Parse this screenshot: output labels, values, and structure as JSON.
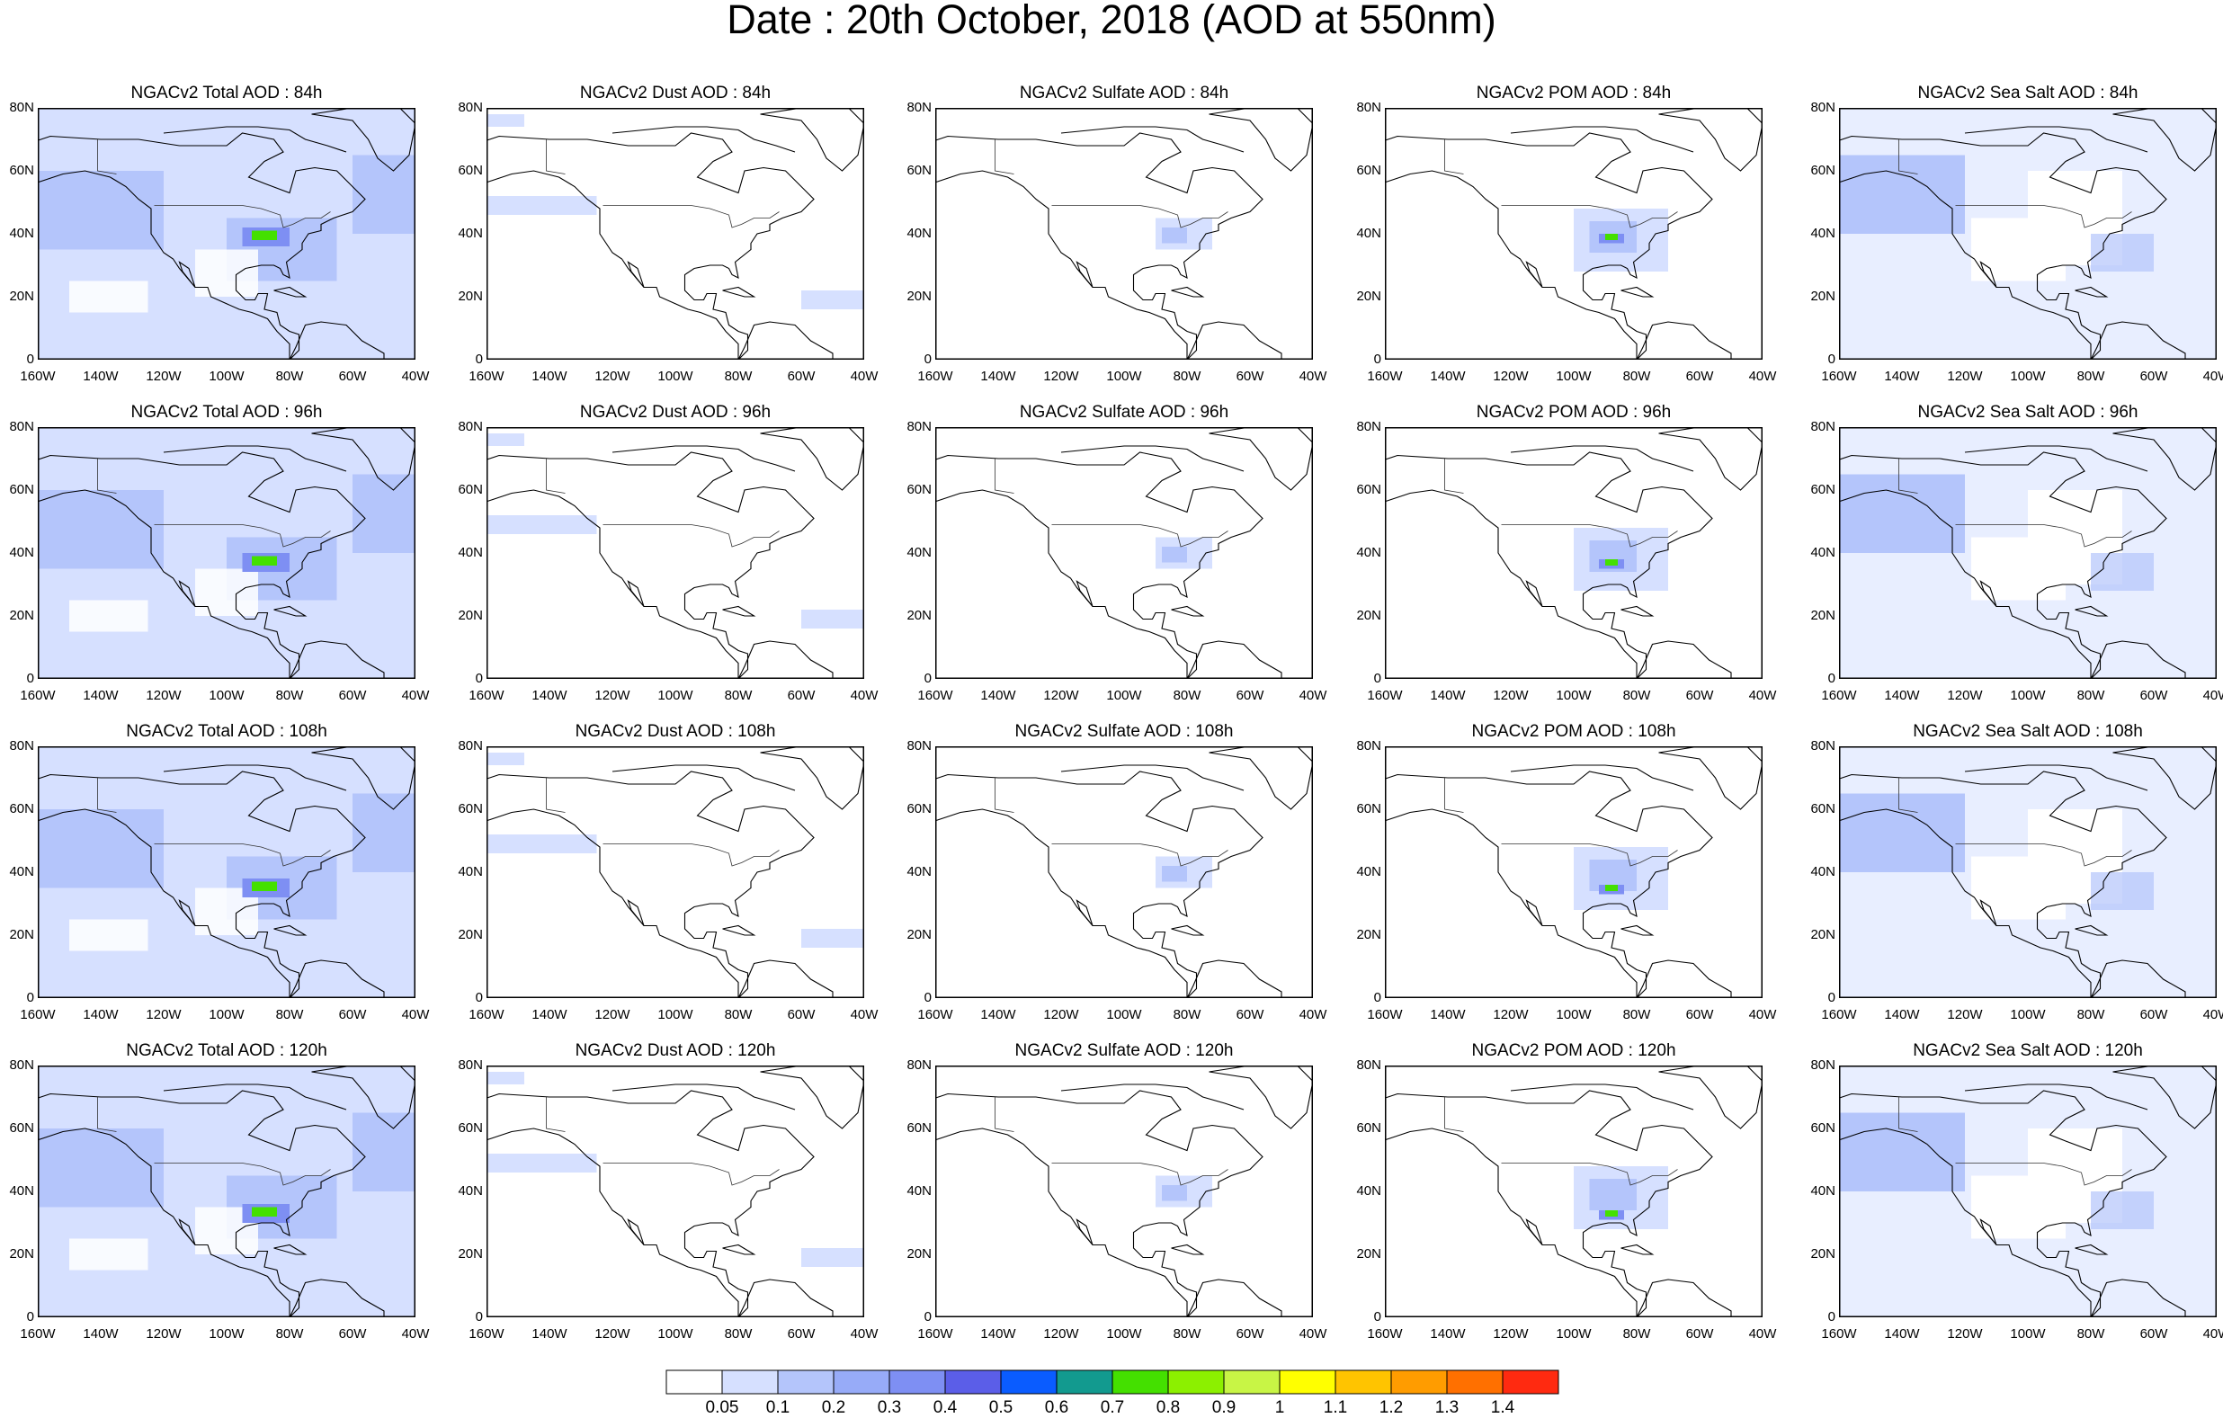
{
  "title": "Date : 20th October, 2018 (AOD at 550nm)",
  "panel_titles": [
    [
      "NGACv2 Total AOD : 84h",
      "NGACv2 Dust AOD : 84h",
      "NGACv2 Sulfate AOD : 84h",
      "NGACv2 POM AOD : 84h",
      "NGACv2 Sea Salt AOD : 84h"
    ],
    [
      "NGACv2 Total AOD : 96h",
      "NGACv2 Dust AOD : 96h",
      "NGACv2 Sulfate AOD : 96h",
      "NGACv2 POM AOD : 96h",
      "NGACv2 Sea Salt AOD : 96h"
    ],
    [
      "NGACv2 Total AOD : 108h",
      "NGACv2 Dust AOD : 108h",
      "NGACv2 Sulfate AOD : 108h",
      "NGACv2 POM AOD : 108h",
      "NGACv2 Sea Salt  AOD : 108h"
    ],
    [
      "NGACv2 Total AOD : 120h",
      "NGACv2 Dust AOD : 120h",
      "NGACv2 Sulfate AOD : 120h",
      "NGACv2 POM AOD : 120h",
      "NGACv2 Sea Salt  AOD : 120h"
    ]
  ],
  "lat_labels": [
    "80N",
    "60N",
    "40N",
    "20N",
    "0"
  ],
  "lon_labels": [
    "160W",
    "140W",
    "120W",
    "100W",
    "80W",
    "60W",
    "40W"
  ],
  "colorbar": {
    "labels": [
      "0.05",
      "0.1",
      "0.2",
      "0.3",
      "0.4",
      "0.5",
      "0.6",
      "0.7",
      "0.8",
      "0.9",
      "1",
      "1.1",
      "1.2",
      "1.3",
      "1.4"
    ],
    "colors": [
      "#ffffff",
      "#d6e0ff",
      "#b4c5fb",
      "#97abf8",
      "#7e8ff3",
      "#5b5ee8",
      "#0a5cff",
      "#129a8f",
      "#44e000",
      "#8cf000",
      "#c8f545",
      "#ffff00",
      "#ffc400",
      "#ff9c00",
      "#ff7000",
      "#ff2a10"
    ]
  },
  "map_colors": {
    "ocean_light": "#d6e0ff",
    "ocean_mid": "#b4c5fb",
    "plume": "#7e8ff3",
    "hotspot": "#44e000"
  }
}
